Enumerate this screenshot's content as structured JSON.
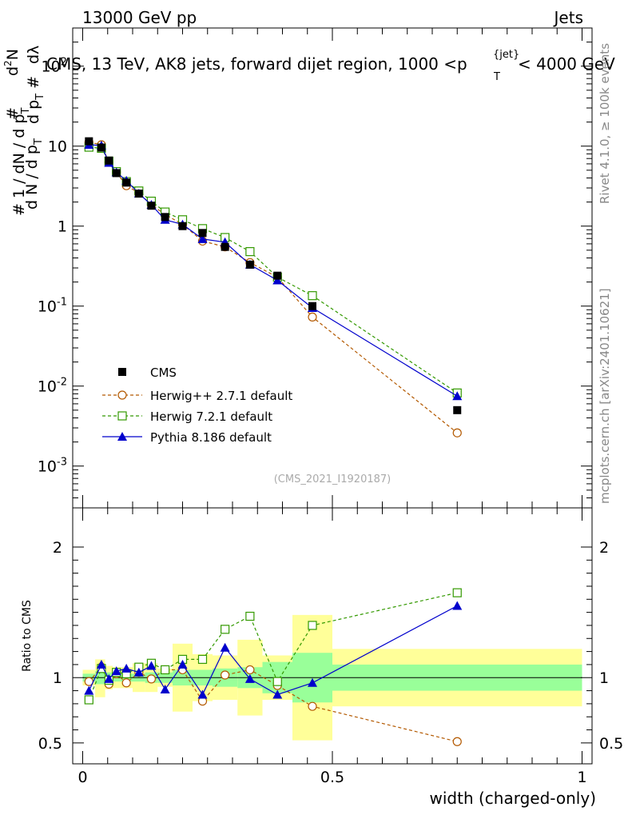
{
  "header": {
    "energy_label": "13000 GeV pp",
    "category_label": "Jets",
    "plot_title": "CMS, 13 TeV, AK8 jets, forward dijet region, 1000 <p",
    "plot_title_sup": "{jet}",
    "plot_title_sub": "T",
    "plot_title_end": "< 4000 GeV",
    "analysis_id": "(CMS_2021_I1920187)",
    "side_rivet": "Rivet 4.1.0, ≥ 100k events",
    "side_mcplots": "mcplots.cern.ch [arXiv:2401.10621]"
  },
  "colors": {
    "cms": "#000000",
    "herwigpp": "#b35900",
    "herwig7": "#339900",
    "pythia": "#0000cc",
    "band_inner": "#99ff99",
    "band_outer": "#ffff99"
  },
  "chart_data": [
    {
      "type": "line",
      "scale": "log",
      "ylabel": "1/N dN/dλ",
      "ylim": [
        0.0003,
        300
      ],
      "xlim": [
        -0.02,
        1.02
      ],
      "legend": [
        "CMS",
        "Herwig++ 2.7.1 default",
        "Herwig 7.2.1 default",
        "Pythia 8.186 default"
      ],
      "legend_position": "lower-left",
      "y_tick_labels": [
        "10^-3",
        "10^-2",
        "10^-1",
        "1",
        "10",
        "10^2"
      ],
      "x": [
        0.0125,
        0.0375,
        0.0525,
        0.0675,
        0.0875,
        0.1125,
        0.1375,
        0.165,
        0.2,
        0.24,
        0.285,
        0.335,
        0.39,
        0.46,
        0.75
      ],
      "series": [
        {
          "name": "CMS",
          "values": [
            11.5,
            9.6,
            6.6,
            4.6,
            3.5,
            2.55,
            1.8,
            1.3,
            1.0,
            0.82,
            0.55,
            0.33,
            0.24,
            0.1,
            0.005
          ]
        },
        {
          "name": "Herwig++ 2.7.1 default",
          "values": [
            11.2,
            10.4,
            6.3,
            4.7,
            3.2,
            2.6,
            1.85,
            1.4,
            1.05,
            0.65,
            0.55,
            0.35,
            0.23,
            0.073,
            0.0026
          ]
        },
        {
          "name": "Herwig 7.2.1 default",
          "values": [
            9.7,
            9.4,
            6.5,
            4.8,
            3.6,
            2.75,
            2.05,
            1.5,
            1.2,
            0.93,
            0.72,
            0.48,
            0.23,
            0.135,
            0.0082
          ]
        },
        {
          "name": "Pythia 8.186 default",
          "values": [
            10.4,
            10.2,
            6.2,
            4.7,
            3.7,
            2.55,
            1.85,
            1.2,
            1.05,
            0.69,
            0.63,
            0.33,
            0.21,
            0.095,
            0.0075
          ]
        }
      ]
    },
    {
      "type": "line",
      "scale": "linear",
      "ylabel": "Ratio to CMS",
      "xlabel": "width (charged-only)",
      "ylim": [
        0.34,
        2.3
      ],
      "xlim": [
        -0.02,
        1.02
      ],
      "y_tick_labels": [
        "0.5",
        "1",
        "2"
      ],
      "x_tick_labels": [
        "0",
        "0.5",
        "1"
      ],
      "x": [
        0.0125,
        0.0375,
        0.0525,
        0.0675,
        0.0875,
        0.1125,
        0.1375,
        0.165,
        0.2,
        0.24,
        0.285,
        0.335,
        0.39,
        0.46,
        0.75
      ],
      "bin_edges": [
        0.0,
        0.025,
        0.045,
        0.06,
        0.075,
        0.1,
        0.125,
        0.15,
        0.18,
        0.22,
        0.26,
        0.31,
        0.36,
        0.42,
        0.5,
        1.0
      ],
      "band_inner_low": [
        0.97,
        0.95,
        0.96,
        0.97,
        0.97,
        0.97,
        0.96,
        0.96,
        0.94,
        0.94,
        0.93,
        0.92,
        0.88,
        0.81,
        0.9
      ],
      "band_inner_high": [
        1.03,
        1.05,
        1.04,
        1.03,
        1.03,
        1.03,
        1.04,
        1.04,
        1.06,
        1.06,
        1.07,
        1.08,
        1.12,
        1.19,
        1.1
      ],
      "band_outer_low": [
        0.94,
        0.85,
        0.91,
        0.92,
        0.92,
        0.89,
        0.89,
        0.93,
        0.74,
        0.82,
        0.83,
        0.71,
        0.83,
        0.52,
        0.78
      ],
      "band_outer_high": [
        1.06,
        1.14,
        1.09,
        1.08,
        1.08,
        1.11,
        1.11,
        1.07,
        1.26,
        1.18,
        1.17,
        1.29,
        1.17,
        1.48,
        1.22
      ],
      "series": [
        {
          "name": "Herwig++ 2.7.1 default",
          "values": [
            0.97,
            1.08,
            0.95,
            1.03,
            0.96,
            1.04,
            0.99,
            1.06,
            1.06,
            0.82,
            1.02,
            1.06,
            0.94,
            0.78,
            0.51
          ]
        },
        {
          "name": "Herwig 7.2.1 default",
          "values": [
            0.83,
            1.07,
            0.98,
            1.04,
            1.03,
            1.08,
            1.11,
            1.06,
            1.14,
            1.14,
            1.37,
            1.47,
            0.97,
            1.4,
            1.65
          ]
        },
        {
          "name": "Pythia 8.186 default",
          "values": [
            0.9,
            1.1,
            0.99,
            1.05,
            1.07,
            1.04,
            1.09,
            0.91,
            1.1,
            0.87,
            1.23,
            0.99,
            0.87,
            0.96,
            1.55
          ]
        }
      ]
    }
  ]
}
